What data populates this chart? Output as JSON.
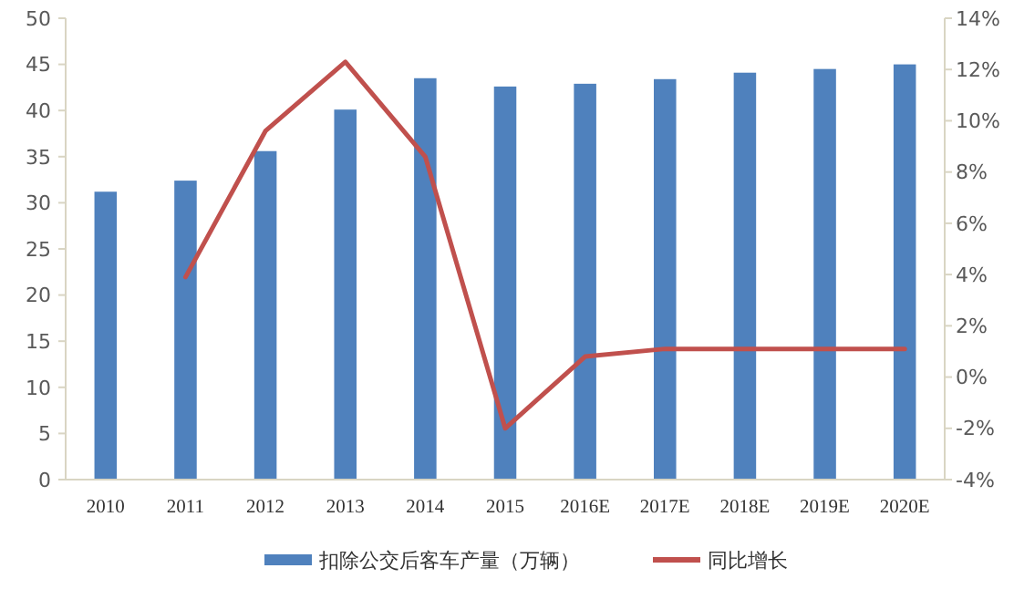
{
  "chart_data": {
    "type": "bar",
    "categories": [
      "2010",
      "2011",
      "2012",
      "2013",
      "2014",
      "2015",
      "2016E",
      "2017E",
      "2018E",
      "2019E",
      "2020E"
    ],
    "series": [
      {
        "name": "扣除公交后客车产量（万辆）",
        "color": "#4f81bd",
        "values": [
          31.2,
          32.4,
          35.6,
          40.1,
          43.5,
          42.6,
          42.9,
          43.4,
          44.1,
          44.5,
          45.0
        ]
      },
      {
        "name": "同比增长",
        "type": "line",
        "axis": "y2",
        "color": "#c0504d",
        "values": [
          null,
          3.9,
          9.6,
          12.3,
          8.6,
          -2.0,
          0.8,
          1.1,
          1.1,
          1.1,
          1.1
        ]
      }
    ],
    "ylim": [
      0,
      50
    ],
    "yticks": [
      0,
      5,
      10,
      15,
      20,
      25,
      30,
      35,
      40,
      45,
      50
    ],
    "y2lim": [
      -4,
      14
    ],
    "y2ticks": [
      {
        "value": -4,
        "label": "-4%"
      },
      {
        "value": -2,
        "label": "-2%"
      },
      {
        "value": 0,
        "label": "0%"
      },
      {
        "value": 2,
        "label": "2%"
      },
      {
        "value": 4,
        "label": "4%"
      },
      {
        "value": 6,
        "label": "6%"
      },
      {
        "value": 8,
        "label": "8%"
      },
      {
        "value": 10,
        "label": "10%"
      },
      {
        "value": 12,
        "label": "12%"
      },
      {
        "value": 14,
        "label": "14%"
      }
    ],
    "grid": false,
    "legend": "bottom"
  }
}
